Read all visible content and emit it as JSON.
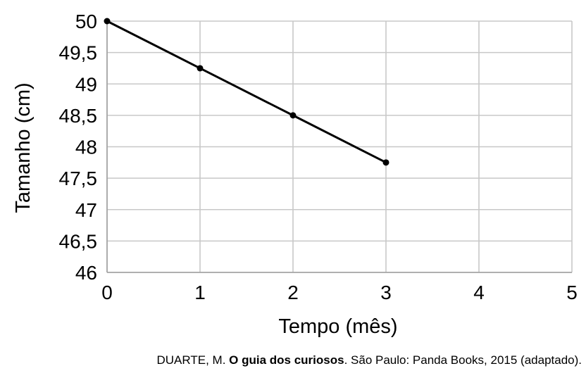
{
  "chart_data": {
    "type": "line",
    "title": "",
    "xlabel": "Tempo (mês)",
    "ylabel": "Tamanho (cm)",
    "xlim": [
      0,
      5
    ],
    "ylim": [
      46,
      50
    ],
    "x_ticks": [
      0,
      1,
      2,
      3,
      4,
      5
    ],
    "x_tick_labels": [
      "0",
      "1",
      "2",
      "3",
      "4",
      "5"
    ],
    "y_ticks": [
      46,
      46.5,
      47,
      47.5,
      48,
      48.5,
      49,
      49.5,
      50
    ],
    "y_tick_labels": [
      "46",
      "46,5",
      "47",
      "47,5",
      "48",
      "48,5",
      "49",
      "49,5",
      "50"
    ],
    "grid": true,
    "legend": "none",
    "series": [
      {
        "x": [
          0,
          1,
          2,
          3
        ],
        "y": [
          50,
          49.25,
          48.5,
          47.75
        ],
        "color": "#000000",
        "markers": true
      }
    ],
    "grid_color": "#c8c8c8"
  },
  "source": {
    "author": "DUARTE, M.",
    "title": "O guia dos curiosos",
    "rest": ". São Paulo: Panda Books, 2015 (adaptado)."
  }
}
